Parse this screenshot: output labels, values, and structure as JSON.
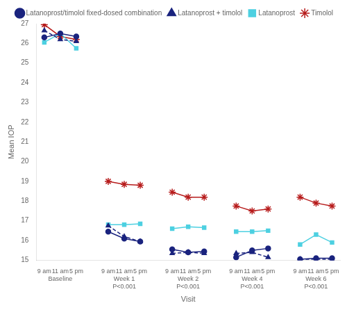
{
  "chart_data": {
    "type": "line",
    "categories": [
      "9 am",
      "11 am",
      "5 pm",
      null,
      "9 am",
      "11 am",
      "5 pm",
      null,
      "9 am",
      "11 am",
      "5 pm",
      null,
      "9 am",
      "11 am",
      "5 pm",
      null,
      "9 am",
      "11 am",
      "5 pm"
    ],
    "groups": [
      {
        "name": "Baseline"
      },
      {
        "name": "Week 1",
        "annotation": "P<0.001"
      },
      {
        "name": "Week 2",
        "annotation": "P<0.001"
      },
      {
        "name": "Week 4",
        "annotation": "P<0.001"
      },
      {
        "name": "Week 6",
        "annotation": "P<0.001"
      }
    ],
    "series": [
      {
        "name": "Latanoprost/timolol fixed-dosed combination",
        "color": "#1a237e",
        "marker": "circle",
        "line_style": "solid",
        "values": [
          26.3,
          26.5,
          26.35,
          null,
          16.45,
          16.1,
          15.95,
          null,
          15.55,
          15.4,
          15.45,
          null,
          15.15,
          15.5,
          15.6,
          null,
          15.05,
          15.1,
          15.1
        ]
      },
      {
        "name": "Latanoprost + timolol",
        "color": "#1a237e",
        "marker": "triangle",
        "line_style": "dashed",
        "values": [
          26.65,
          26.2,
          26.1,
          null,
          16.75,
          16.2,
          15.95,
          null,
          15.35,
          15.4,
          15.35,
          null,
          15.35,
          15.4,
          15.15,
          null,
          15.05,
          15.05,
          15.05
        ]
      },
      {
        "name": "Latanoprost",
        "color": "#4dd0e1",
        "marker": "square",
        "line_style": "solid",
        "values": [
          26.05,
          26.5,
          25.75,
          null,
          16.8,
          16.8,
          16.85,
          null,
          16.6,
          16.7,
          16.65,
          null,
          16.45,
          16.45,
          16.5,
          null,
          15.8,
          16.3,
          15.9
        ]
      },
      {
        "name": "Timolol",
        "color": "#b71c1c",
        "marker": "star",
        "line_style": "solid",
        "values": [
          26.95,
          26.35,
          26.2,
          null,
          19.0,
          18.85,
          18.8,
          null,
          18.45,
          18.2,
          18.2,
          null,
          17.75,
          17.5,
          17.6,
          null,
          18.2,
          17.9,
          17.75
        ]
      }
    ],
    "xlabel": "Visit",
    "ylabel": "Mean IOP",
    "ylim": [
      15,
      27
    ],
    "yticks": [
      15,
      16,
      17,
      18,
      19,
      20,
      21,
      22,
      23,
      24,
      25,
      26,
      27
    ],
    "grid": false,
    "legend": "upper right"
  }
}
